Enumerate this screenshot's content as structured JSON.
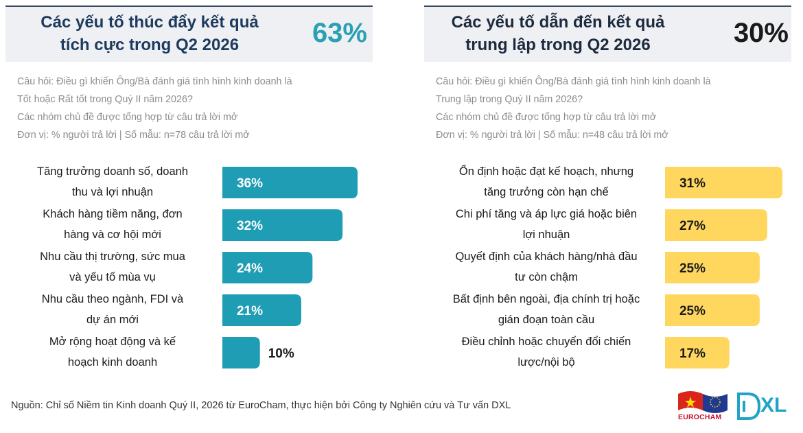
{
  "left_panel": {
    "title_line1": "Các yếu tố thúc đẩy kết quả",
    "title_line2": "tích cực trong Q2 2026",
    "percent": "63%",
    "question_line1": "Câu hỏi: Điều gì khiến Ông/Bà đánh giá tình hình kinh doanh là",
    "question_line2": "Tốt hoặc Rất tốt trong Quý II năm 2026?",
    "note": "Các nhóm chủ đề được tổng hợp từ câu trả lời mở",
    "unit": "Đơn vị: % người trả lời | Số mẫu: n=78 câu trả lời mở"
  },
  "right_panel": {
    "title_line1": "Các yếu tố dẫn đến kết quả",
    "title_line2": "trung lập trong Q2 2026",
    "percent": "30%",
    "question_line1": "Câu hỏi: Điều gì khiến Ông/Bà đánh giá tình hình kinh doanh là",
    "question_line2": "Trung lập trong Quý II năm 2026?",
    "note": "Các nhóm chủ đề được tổng hợp từ câu trả lời mở",
    "unit": "Đơn vị: % người trả lời | Số mẫu: n=48 câu trả lời mở"
  },
  "chart_data": [
    {
      "type": "bar",
      "orientation": "horizontal",
      "categories": [
        [
          "Tăng trưởng doanh số, doanh",
          "thu và lợi nhuận"
        ],
        [
          "Khách hàng tiềm năng, đơn",
          "hàng và cơ hội mới"
        ],
        [
          "Nhu cầu thị trường, sức mua",
          "và yếu tố mùa vụ"
        ],
        [
          "Nhu cầu theo ngành, FDI và",
          "dự án mới"
        ],
        [
          "Mở rộng hoạt động và kế",
          "hoạch kinh doanh"
        ]
      ],
      "values": [
        36,
        32,
        24,
        21,
        10
      ],
      "value_labels": [
        "36%",
        "32%",
        "24%",
        "21%",
        "10%"
      ],
      "bar_color": "#1e9db4",
      "label_color_inside": "#ffffff",
      "label_color_outside": "#1a1a1a",
      "xlim": [
        0,
        36
      ]
    },
    {
      "type": "bar",
      "orientation": "horizontal",
      "categories": [
        [
          "Ổn định hoặc đạt kế hoạch, nhưng",
          "tăng trưởng còn hạn chế"
        ],
        [
          "Chi phí tăng và áp lực giá hoặc biên",
          "lợi nhuận"
        ],
        [
          "Quyết định của khách hàng/nhà đầu",
          "tư còn chậm"
        ],
        [
          "Bất định bên ngoài, địa chính trị hoặc",
          "gián đoạn toàn cầu"
        ],
        [
          "Điều chỉnh hoặc chuyển đổi chiến",
          "lược/nội bộ"
        ]
      ],
      "values": [
        31,
        27,
        25,
        25,
        17
      ],
      "value_labels": [
        "31%",
        "27%",
        "25%",
        "25%",
        "17%"
      ],
      "bar_color": "#ffd75e",
      "label_color_inside": "#1a1a1a",
      "label_color_outside": "#1a1a1a",
      "xlim": [
        0,
        31
      ]
    }
  ],
  "footer": {
    "source": "Nguồn: Chỉ số Niềm tin Kinh doanh Quý II, 2026 từ EuroCham, thực hiện bởi Công ty Nghiên cứu và Tư vấn DXL"
  },
  "logos": {
    "eurocham": "EUROCHAM",
    "dxl": "XL"
  }
}
